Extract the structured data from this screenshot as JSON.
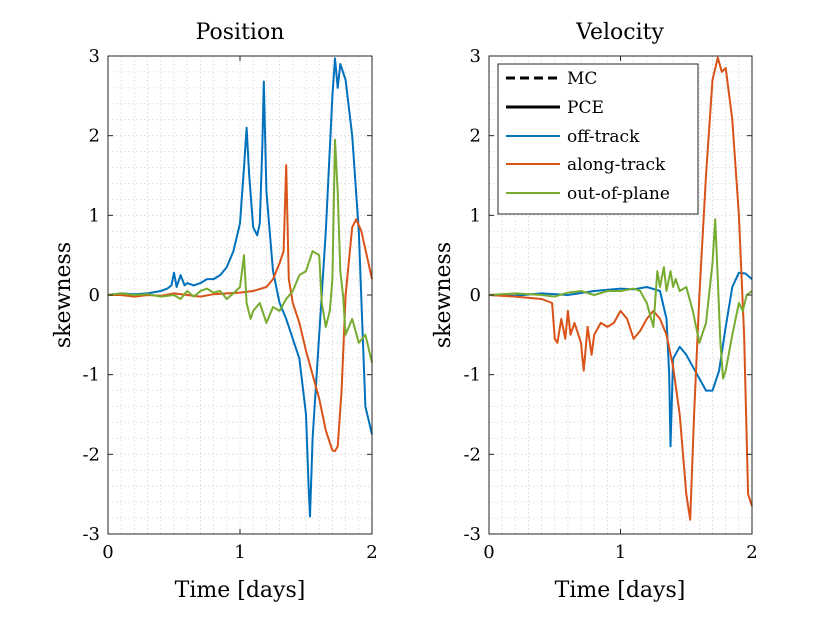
{
  "colors": {
    "off_track": "#0072BD",
    "along_track": "#D95319",
    "out_of_plane": "#77AC30",
    "grid": "#d6d6d6",
    "axis": "#262626"
  },
  "chart_data": [
    {
      "type": "line",
      "title": "Position",
      "xlabel": "Time [days]",
      "ylabel": "skewness",
      "xlim": [
        0,
        2
      ],
      "ylim": [
        -3,
        3
      ],
      "xticks": [
        0,
        1,
        2
      ],
      "xtick_labels": [
        "0",
        "1",
        "2"
      ],
      "yticks": [
        -3,
        -2,
        -1,
        0,
        1,
        2,
        3
      ],
      "ytick_labels": [
        "-3",
        "-2",
        "-1",
        "0",
        "1",
        "2",
        "3"
      ],
      "grid": true,
      "series": [
        {
          "name": "off-track",
          "color_key": "off_track",
          "x": [
            0,
            0.1,
            0.2,
            0.3,
            0.4,
            0.45,
            0.48,
            0.5,
            0.52,
            0.55,
            0.58,
            0.6,
            0.65,
            0.7,
            0.75,
            0.8,
            0.85,
            0.9,
            0.95,
            1.0,
            1.03,
            1.05,
            1.07,
            1.1,
            1.13,
            1.15,
            1.17,
            1.18,
            1.19,
            1.2,
            1.25,
            1.3,
            1.35,
            1.4,
            1.45,
            1.5,
            1.52,
            1.53,
            1.55,
            1.6,
            1.65,
            1.7,
            1.72,
            1.74,
            1.76,
            1.8,
            1.85,
            1.9,
            1.95,
            2.0
          ],
          "y": [
            0,
            0.02,
            0.01,
            0.02,
            0.05,
            0.08,
            0.12,
            0.28,
            0.1,
            0.25,
            0.12,
            0.15,
            0.12,
            0.15,
            0.2,
            0.2,
            0.25,
            0.35,
            0.55,
            0.9,
            1.6,
            2.1,
            1.5,
            0.85,
            0.75,
            0.9,
            1.9,
            2.68,
            2.0,
            1.3,
            0.3,
            -0.1,
            -0.3,
            -0.55,
            -0.8,
            -1.5,
            -2.4,
            -2.78,
            -1.8,
            -0.5,
            0.8,
            2.5,
            2.97,
            2.6,
            2.9,
            2.7,
            2.0,
            0.8,
            -1.4,
            -1.75
          ]
        },
        {
          "name": "along-track",
          "color_key": "along_track",
          "x": [
            0,
            0.1,
            0.2,
            0.3,
            0.4,
            0.5,
            0.6,
            0.7,
            0.8,
            0.9,
            1.0,
            1.1,
            1.2,
            1.25,
            1.3,
            1.33,
            1.35,
            1.37,
            1.4,
            1.45,
            1.5,
            1.55,
            1.6,
            1.65,
            1.7,
            1.72,
            1.74,
            1.77,
            1.8,
            1.85,
            1.88,
            1.92,
            1.96,
            2.0
          ],
          "y": [
            0,
            0,
            -0.02,
            0,
            -0.01,
            0.02,
            0,
            -0.02,
            0.01,
            0.02,
            0.03,
            0.05,
            0.1,
            0.2,
            0.4,
            0.55,
            1.63,
            0.2,
            -0.1,
            -0.35,
            -0.7,
            -1.0,
            -1.3,
            -1.7,
            -1.95,
            -1.96,
            -1.9,
            -1.2,
            0.0,
            0.85,
            0.95,
            0.8,
            0.5,
            0.2
          ]
        },
        {
          "name": "out-of-plane",
          "color_key": "out_of_plane",
          "x": [
            0,
            0.1,
            0.2,
            0.3,
            0.4,
            0.5,
            0.55,
            0.6,
            0.65,
            0.7,
            0.75,
            0.8,
            0.85,
            0.9,
            0.95,
            1.0,
            1.03,
            1.05,
            1.08,
            1.1,
            1.15,
            1.2,
            1.25,
            1.3,
            1.35,
            1.4,
            1.45,
            1.5,
            1.55,
            1.6,
            1.62,
            1.65,
            1.68,
            1.7,
            1.72,
            1.74,
            1.76,
            1.78,
            1.8,
            1.85,
            1.9,
            1.95,
            2.0
          ],
          "y": [
            0,
            0.02,
            0,
            0.01,
            -0.02,
            0,
            -0.05,
            0.05,
            -0.02,
            0.05,
            0.08,
            0.03,
            0.05,
            -0.05,
            0.02,
            0.1,
            0.5,
            -0.1,
            -0.3,
            -0.2,
            -0.1,
            -0.35,
            -0.15,
            -0.2,
            -0.05,
            0.05,
            0.25,
            0.3,
            0.55,
            0.5,
            -0.1,
            -0.4,
            -0.2,
            0.2,
            1.95,
            1.3,
            0.3,
            0.0,
            -0.5,
            -0.3,
            -0.6,
            -0.5,
            -0.85
          ]
        }
      ]
    },
    {
      "type": "line",
      "title": "Velocity",
      "xlabel": "Time [days]",
      "ylabel": "skewness",
      "xlim": [
        0,
        2
      ],
      "ylim": [
        -3,
        3
      ],
      "xticks": [
        0,
        1,
        2
      ],
      "xtick_labels": [
        "0",
        "1",
        "2"
      ],
      "yticks": [
        -3,
        -2,
        -1,
        0,
        1,
        2,
        3
      ],
      "ytick_labels": [
        "-3",
        "-2",
        "-1",
        "0",
        "1",
        "2",
        "3"
      ],
      "grid": true,
      "legend": {
        "placement": "top-left",
        "entries": [
          {
            "label": "MC",
            "style": "dashed",
            "color_key": "axis"
          },
          {
            "label": "PCE",
            "style": "solid",
            "color_key": "axis"
          },
          {
            "label": "off-track",
            "style": "solid",
            "color_key": "off_track"
          },
          {
            "label": "along-track",
            "style": "solid",
            "color_key": "along_track"
          },
          {
            "label": "out-of-plane",
            "style": "solid",
            "color_key": "out_of_plane"
          }
        ]
      },
      "series": [
        {
          "name": "off-track",
          "color_key": "off_track",
          "x": [
            0,
            0.2,
            0.4,
            0.6,
            0.8,
            1.0,
            1.1,
            1.2,
            1.3,
            1.35,
            1.37,
            1.38,
            1.4,
            1.45,
            1.5,
            1.55,
            1.6,
            1.65,
            1.7,
            1.75,
            1.8,
            1.85,
            1.9,
            1.95,
            2.0
          ],
          "y": [
            0,
            -0.01,
            0.02,
            0,
            0.05,
            0.08,
            0.07,
            0.1,
            0.05,
            -0.3,
            -1.0,
            -1.9,
            -0.8,
            -0.65,
            -0.75,
            -0.9,
            -1.05,
            -1.2,
            -1.2,
            -0.95,
            -0.4,
            0.1,
            0.28,
            0.27,
            0.2
          ]
        },
        {
          "name": "along-track",
          "color_key": "along_track",
          "x": [
            0,
            0.2,
            0.4,
            0.48,
            0.5,
            0.52,
            0.55,
            0.58,
            0.6,
            0.62,
            0.65,
            0.7,
            0.72,
            0.75,
            0.78,
            0.8,
            0.85,
            0.9,
            0.95,
            1.0,
            1.05,
            1.1,
            1.15,
            1.2,
            1.25,
            1.3,
            1.35,
            1.4,
            1.45,
            1.5,
            1.53,
            1.56,
            1.6,
            1.65,
            1.7,
            1.74,
            1.77,
            1.8,
            1.85,
            1.9,
            1.94,
            1.97,
            2.0
          ],
          "y": [
            0,
            -0.02,
            -0.05,
            -0.1,
            -0.55,
            -0.6,
            -0.3,
            -0.55,
            -0.2,
            -0.5,
            -0.35,
            -0.6,
            -0.95,
            -0.4,
            -0.75,
            -0.5,
            -0.35,
            -0.4,
            -0.35,
            -0.2,
            -0.3,
            -0.55,
            -0.45,
            -0.3,
            -0.2,
            -0.3,
            -0.5,
            -0.9,
            -1.5,
            -2.5,
            -2.82,
            -1.5,
            0.0,
            1.5,
            2.7,
            2.98,
            2.8,
            2.85,
            2.2,
            1.0,
            -0.5,
            -2.5,
            -2.65
          ]
        },
        {
          "name": "out-of-plane",
          "color_key": "out_of_plane",
          "x": [
            0,
            0.2,
            0.4,
            0.5,
            0.6,
            0.7,
            0.8,
            0.9,
            1.0,
            1.1,
            1.15,
            1.2,
            1.25,
            1.28,
            1.3,
            1.33,
            1.35,
            1.38,
            1.4,
            1.42,
            1.45,
            1.5,
            1.55,
            1.6,
            1.65,
            1.7,
            1.72,
            1.74,
            1.76,
            1.78,
            1.8,
            1.85,
            1.9,
            1.93,
            1.96,
            2.0
          ],
          "y": [
            0,
            0.02,
            0,
            -0.02,
            0.03,
            0.05,
            0,
            0.05,
            0.05,
            0.08,
            0.05,
            -0.1,
            -0.4,
            0.3,
            0.1,
            0.35,
            0.05,
            0.3,
            0.1,
            0.2,
            0.05,
            0.1,
            -0.2,
            -0.6,
            -0.35,
            0.4,
            0.95,
            0.2,
            -0.6,
            -1.05,
            -0.95,
            -0.5,
            -0.1,
            -0.2,
            0.0,
            0.05
          ]
        }
      ]
    }
  ]
}
